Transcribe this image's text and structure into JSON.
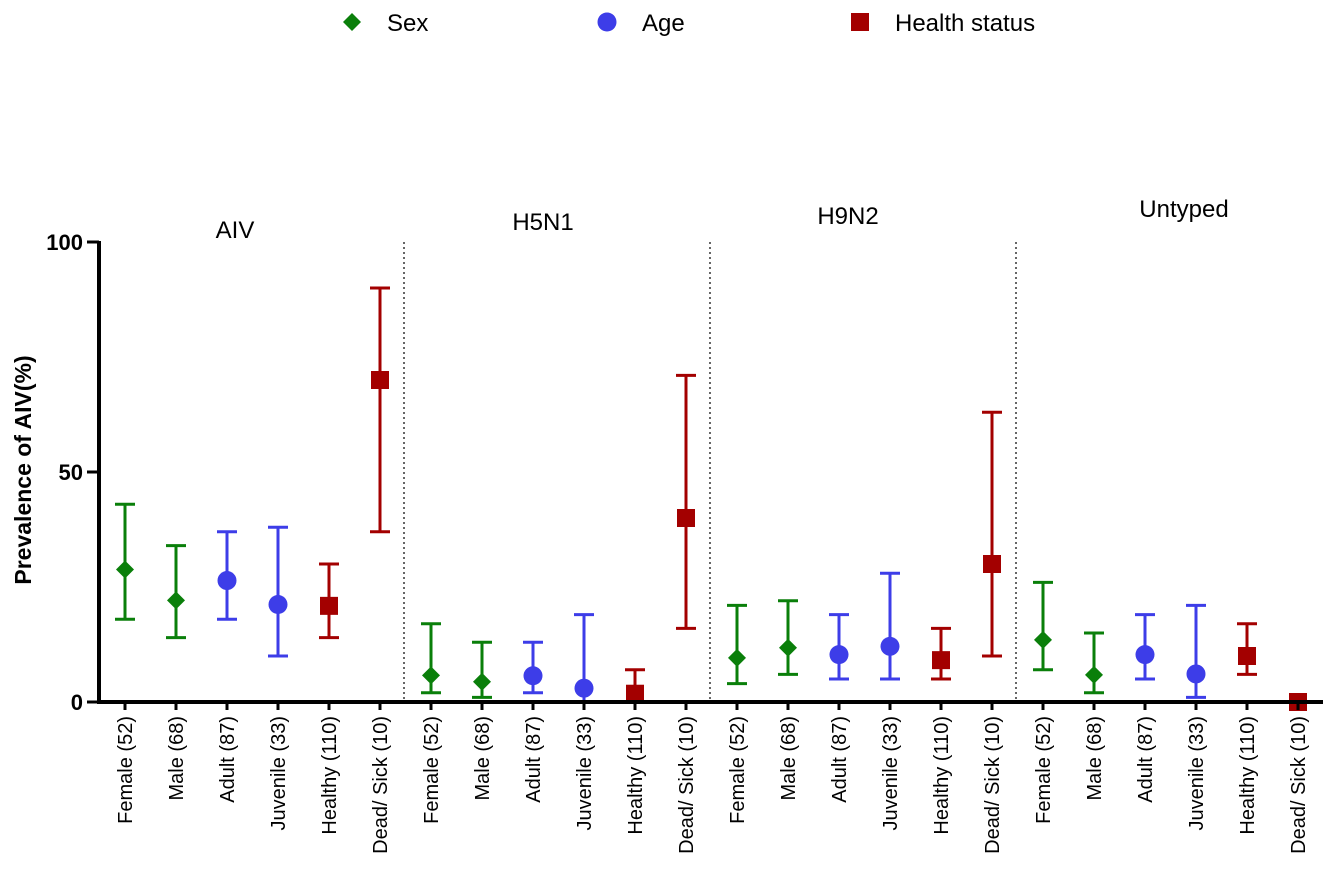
{
  "chart_data": {
    "type": "scatter",
    "title": "",
    "xlabel": "",
    "ylabel": "Prevalence of AIV(%)",
    "ylim": [
      0,
      100
    ],
    "yticks": [
      0,
      50,
      100
    ],
    "grid": false,
    "legend_position": "top",
    "legend": [
      {
        "name": "Sex",
        "color": "#0a7f0a",
        "marker": "diamond"
      },
      {
        "name": "Age",
        "color": "#3d3de8",
        "marker": "circle"
      },
      {
        "name": "Health status",
        "color": "#a30000",
        "marker": "square"
      }
    ],
    "panels": [
      "AIV",
      "H5N1",
      "H9N2",
      "Untyped"
    ],
    "categories": [
      "Female (52)",
      "Male (68)",
      "Adult (87)",
      "Juvenile (33)",
      "Healthy (110)",
      "Dead/ Sick (10)"
    ],
    "category_groups": [
      "Sex",
      "Sex",
      "Age",
      "Age",
      "Health status",
      "Health status"
    ],
    "series": [
      {
        "name": "AIV",
        "values": [
          28.8,
          22.1,
          26.4,
          21.2,
          20.9,
          70.0
        ],
        "lower": [
          18.0,
          14.0,
          18.0,
          10.0,
          14.0,
          37.0
        ],
        "upper": [
          43.0,
          34.0,
          37.0,
          38.0,
          30.0,
          90.0
        ]
      },
      {
        "name": "H5N1",
        "values": [
          5.8,
          4.4,
          5.7,
          3.0,
          1.8,
          40.0
        ],
        "lower": [
          2.0,
          1.0,
          2.0,
          0.0,
          0.0,
          16.0
        ],
        "upper": [
          17.0,
          13.0,
          13.0,
          19.0,
          7.0,
          71.0
        ]
      },
      {
        "name": "H9N2",
        "values": [
          9.6,
          11.8,
          10.3,
          12.1,
          9.1,
          30.0
        ],
        "lower": [
          4.0,
          6.0,
          5.0,
          5.0,
          5.0,
          10.0
        ],
        "upper": [
          21.0,
          22.0,
          19.0,
          28.0,
          16.0,
          63.0
        ]
      },
      {
        "name": "Untyped",
        "values": [
          13.5,
          5.9,
          10.3,
          6.1,
          10.0,
          0
        ],
        "lower": [
          7.0,
          2.0,
          5.0,
          1.0,
          6.0,
          0
        ],
        "upper": [
          26.0,
          15.0,
          19.0,
          21.0,
          17.0,
          0
        ]
      }
    ]
  }
}
